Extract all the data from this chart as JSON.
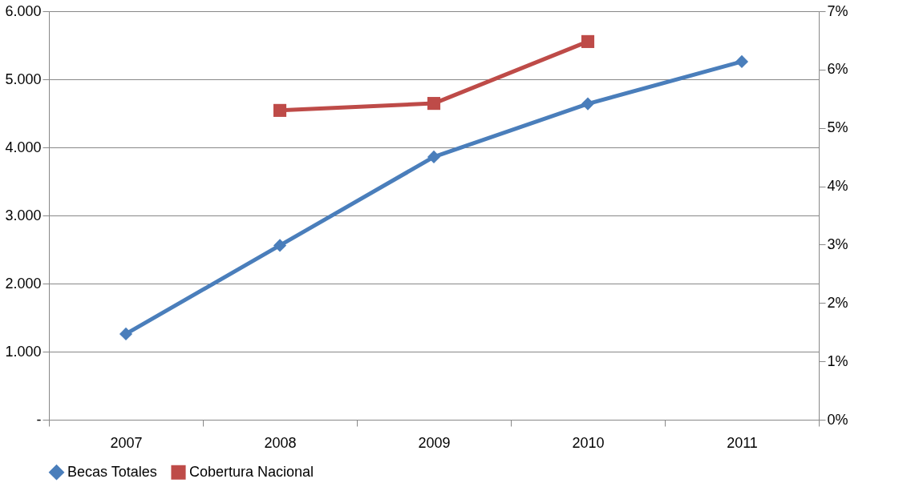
{
  "chart_data": {
    "type": "line",
    "categories": [
      "2007",
      "2008",
      "2009",
      "2010",
      "2011"
    ],
    "series": [
      {
        "name": "Becas Totales",
        "color": "#4a7ebb",
        "marker": "diamond",
        "values": [
          1260,
          2560,
          3860,
          4640,
          5260
        ]
      },
      {
        "name": "Cobertura Nacional",
        "color": "#be4b48",
        "marker": "square",
        "axis": "y2",
        "values": [
          null,
          5.3,
          5.42,
          6.48,
          null
        ]
      }
    ],
    "ylim": [
      0,
      6000
    ],
    "yticks": [
      {
        "value": 0,
        "label": "-"
      },
      {
        "value": 1000,
        "label": "1.000"
      },
      {
        "value": 2000,
        "label": "2.000"
      },
      {
        "value": 3000,
        "label": "3.000"
      },
      {
        "value": 4000,
        "label": "4.000"
      },
      {
        "value": 5000,
        "label": "5.000"
      },
      {
        "value": 6000,
        "label": "6.000"
      }
    ],
    "y2lim": [
      0,
      7
    ],
    "y2ticks": [
      {
        "value": 0,
        "label": "0%"
      },
      {
        "value": 1,
        "label": "1%"
      },
      {
        "value": 2,
        "label": "2%"
      },
      {
        "value": 3,
        "label": "3%"
      },
      {
        "value": 4,
        "label": "4%"
      },
      {
        "value": 5,
        "label": "5%"
      },
      {
        "value": 6,
        "label": "6%"
      },
      {
        "value": 7,
        "label": "7%"
      }
    ],
    "grid": "y",
    "legend": "bottom",
    "line_style": "solid"
  }
}
